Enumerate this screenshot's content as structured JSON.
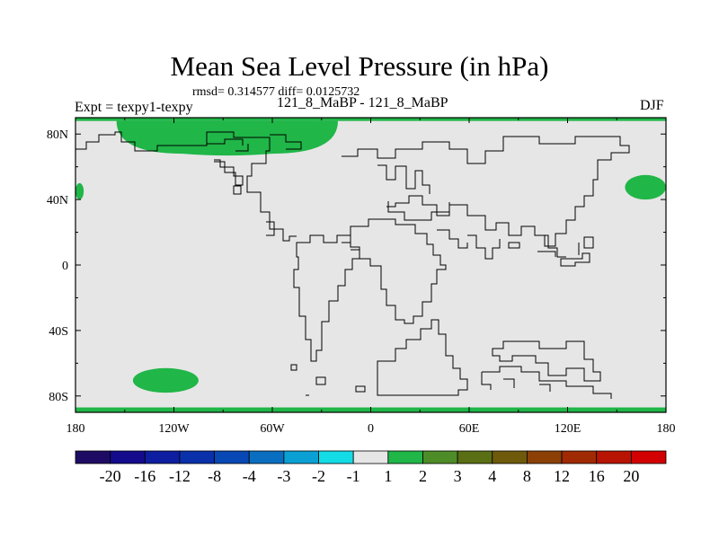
{
  "title": "Mean Sea Level Pressure (in hPa)",
  "stats": "rmsd= 0.314577 diff= 0.0125732",
  "left_label": "Expt = texpy1-texpy",
  "center_label": "121_8_MaBP - 121_8_MaBP",
  "right_label": "DJF",
  "chart_data": {
    "type": "heatmap",
    "x_ticks": [
      "180",
      "120W",
      "60W",
      "0",
      "60E",
      "120E",
      "180"
    ],
    "y_ticks": [
      "80N",
      "40N",
      "0",
      "40S",
      "80S"
    ],
    "xlim": [
      -180,
      180
    ],
    "ylim": [
      -90,
      90
    ],
    "background_value_range": [
      -1,
      1
    ],
    "regions": [
      {
        "value_bin": "1 to 2",
        "color": "#20b648",
        "area": "Arctic band near 90N",
        "lon": [
          -180,
          180
        ],
        "lat": [
          88,
          90
        ]
      },
      {
        "value_bin": "1 to 2",
        "color": "#20b648",
        "area": "North Pacific / Arctic high",
        "lon": [
          -155,
          -20
        ],
        "lat": [
          68,
          88
        ]
      },
      {
        "value_bin": "1 to 2",
        "color": "#20b648",
        "area": "Western North Pacific",
        "lon": [
          155,
          180
        ],
        "lat": [
          40,
          55
        ]
      },
      {
        "value_bin": "1 to 2",
        "color": "#20b648",
        "area": "East Pacific edge",
        "lon": [
          -180,
          -175
        ],
        "lat": [
          40,
          50
        ]
      },
      {
        "value_bin": "1 to 2",
        "color": "#20b648",
        "area": "South Pacific",
        "lon": [
          -145,
          -105
        ],
        "lat": [
          -78,
          -63
        ]
      },
      {
        "value_bin": "1 to 2",
        "color": "#20b648",
        "area": "Antarctic band near 90S",
        "lon": [
          -180,
          180
        ],
        "lat": [
          -90,
          -87
        ]
      }
    ],
    "colorbar": {
      "labels": [
        "-20",
        "-16",
        "-12",
        "-8",
        "-4",
        "-3",
        "-2",
        "-1",
        "1",
        "2",
        "3",
        "4",
        "8",
        "12",
        "16",
        "20"
      ],
      "colors": [
        "#1e0c64",
        "#140a8c",
        "#0e1ea0",
        "#0a30aa",
        "#0848b4",
        "#0a6ec0",
        "#0aa0d4",
        "#14dce6",
        "#e6e6e6",
        "#20b648",
        "#4e8c28",
        "#5a6e14",
        "#6e5a0a",
        "#8c4006",
        "#a02a04",
        "#b81404",
        "#d20000"
      ]
    }
  }
}
